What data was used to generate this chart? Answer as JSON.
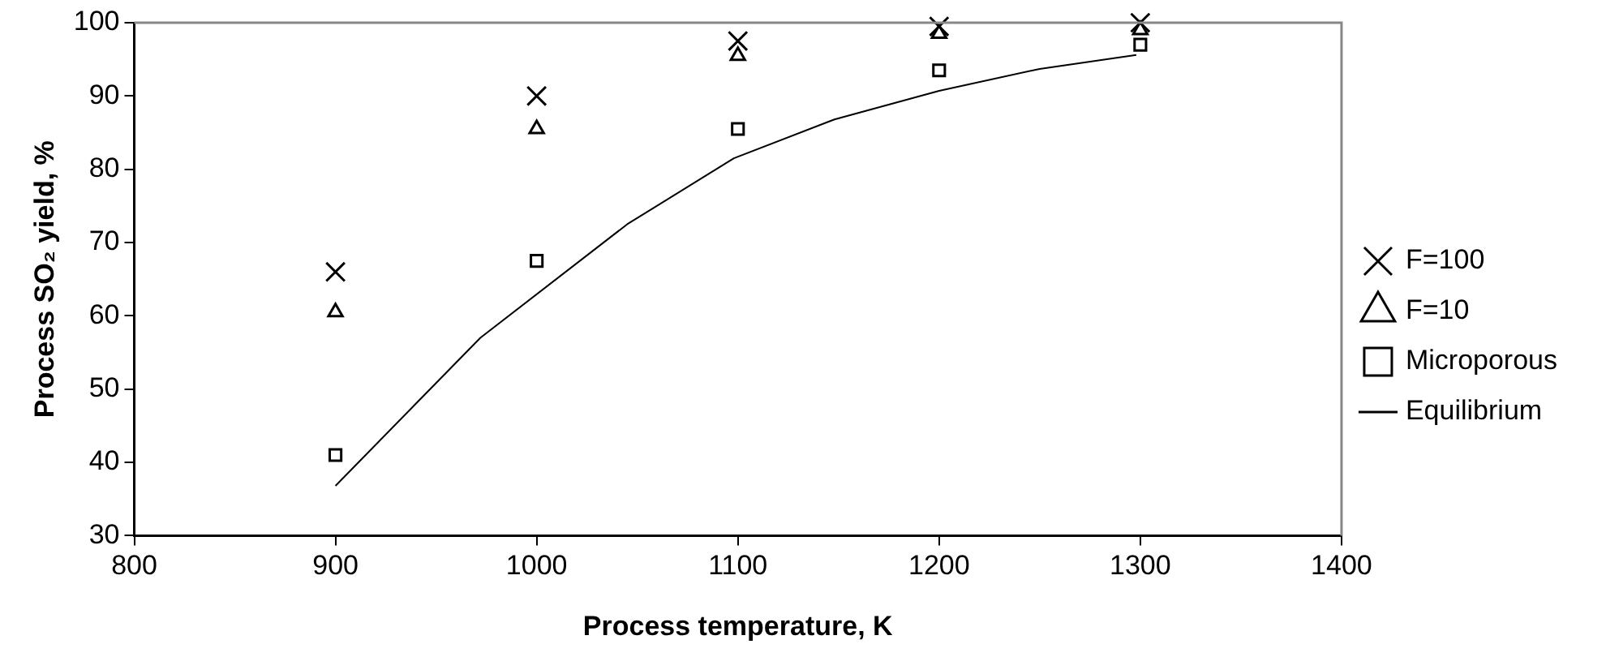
{
  "chart_data": {
    "type": "scatter",
    "xlabel": "Process temperature, K",
    "ylabel": "Process SO₂ yield, %",
    "xlim": [
      800,
      1400
    ],
    "xticks": [
      800,
      900,
      1000,
      1100,
      1200,
      1300,
      1400
    ],
    "ylim": [
      30,
      100
    ],
    "yticks": [
      30,
      40,
      50,
      60,
      70,
      80,
      90,
      100
    ],
    "grid": false,
    "legend": "right",
    "series": [
      {
        "name": "F=100",
        "color": "#000000",
        "marker": "cross",
        "x": [
          900,
          1000,
          1100,
          1200,
          1300
        ],
        "values": [
          66,
          90,
          97.5,
          99.5,
          100
        ]
      },
      {
        "name": "F=10",
        "color": "#000000",
        "marker": "triangle",
        "x": [
          900,
          1000,
          1100,
          1200,
          1300
        ],
        "values": [
          60.5,
          85.5,
          95.5,
          98.5,
          99
        ]
      },
      {
        "name": "Microporous",
        "color": "#000000",
        "marker": "square",
        "x": [
          900,
          1000,
          1100,
          1200,
          1300
        ],
        "values": [
          41,
          67.5,
          85.5,
          93.5,
          97
        ]
      },
      {
        "name": "Equilibrium",
        "type": "line",
        "color": "#000000",
        "marker": "none",
        "line_style": "solid",
        "x": [
          900,
          972,
          1045,
          1098,
          1148,
          1200,
          1250,
          1298
        ],
        "values": [
          36.8,
          57,
          72.5,
          81.5,
          86.8,
          90.7,
          93.7,
          95.6
        ]
      }
    ]
  }
}
